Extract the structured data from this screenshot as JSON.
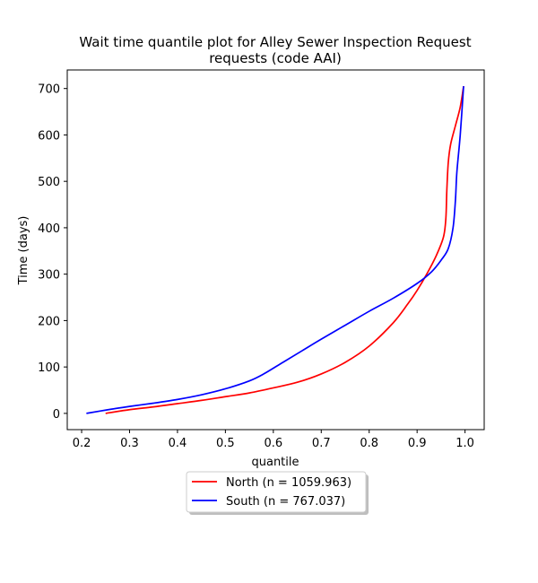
{
  "chart_data": {
    "type": "line",
    "title_line1": "Wait time quantile plot for Alley Sewer Inspection Request",
    "title_line2": "requests (code AAI)",
    "xlabel": "quantile",
    "ylabel": "Time (days)",
    "xlim": [
      0.17,
      1.04
    ],
    "ylim": [
      -35,
      740
    ],
    "xticks": [
      0.2,
      0.3,
      0.4,
      0.5,
      0.6,
      0.7,
      0.8,
      0.9,
      1.0
    ],
    "xtick_labels": [
      "0.2",
      "0.3",
      "0.4",
      "0.5",
      "0.6",
      "0.7",
      "0.8",
      "0.9",
      "1.0"
    ],
    "yticks": [
      0,
      100,
      200,
      300,
      400,
      500,
      600,
      700
    ],
    "ytick_labels": [
      "0",
      "100",
      "200",
      "300",
      "400",
      "500",
      "600",
      "700"
    ],
    "grid": false,
    "legend_position": "below-center",
    "series": [
      {
        "name": "North (n = 1059.963)",
        "color": "#ff0000",
        "x": [
          0.25,
          0.3,
          0.35,
          0.4,
          0.45,
          0.5,
          0.55,
          0.6,
          0.65,
          0.7,
          0.75,
          0.8,
          0.85,
          0.88,
          0.9,
          0.92,
          0.94,
          0.955,
          0.96,
          0.962,
          0.965,
          0.97,
          0.98,
          0.99,
          0.997
        ],
        "y": [
          0,
          8,
          14,
          21,
          28,
          36,
          44,
          55,
          67,
          85,
          110,
          145,
          195,
          235,
          265,
          300,
          340,
          380,
          420,
          480,
          540,
          580,
          620,
          660,
          705
        ]
      },
      {
        "name": "South (n = 767.037)",
        "color": "#0000ff",
        "x": [
          0.21,
          0.25,
          0.3,
          0.35,
          0.4,
          0.45,
          0.5,
          0.55,
          0.58,
          0.62,
          0.66,
          0.7,
          0.75,
          0.8,
          0.85,
          0.9,
          0.93,
          0.95,
          0.965,
          0.975,
          0.98,
          0.983,
          0.99,
          0.997
        ],
        "y": [
          0,
          7,
          15,
          22,
          30,
          40,
          53,
          70,
          85,
          110,
          135,
          160,
          190,
          220,
          248,
          280,
          305,
          330,
          355,
          400,
          460,
          520,
          600,
          705
        ]
      }
    ]
  }
}
